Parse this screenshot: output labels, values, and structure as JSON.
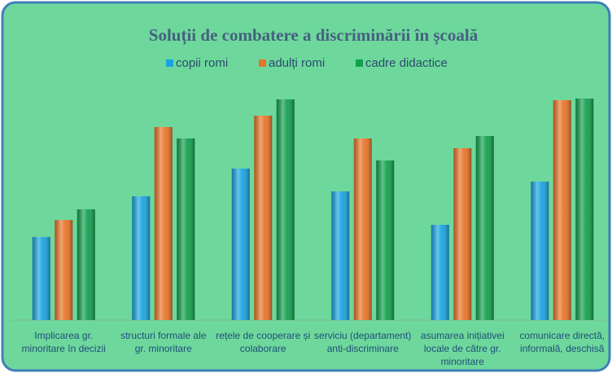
{
  "chart_data": {
    "type": "bar",
    "title": "Soluții de combatere a discriminării în școală",
    "categories": [
      "Implicarea gr. minoritare în decizii",
      "structuri formale ale gr. minoritare",
      "rețele de cooperare și colaborare",
      "serviciu (departament) anti-discriminare",
      "asumarea inițiativei locale de către gr. minoritare",
      "comunicare directă, informală, deschisă"
    ],
    "series": [
      {
        "name": "copii romi",
        "color": "#1aa3e0",
        "values": [
          102,
          152,
          186,
          158,
          117,
          170
        ]
      },
      {
        "name": "adulți romi",
        "color": "#e8742a",
        "values": [
          123,
          237,
          251,
          223,
          211,
          270
        ]
      },
      {
        "name": "cadre didactice",
        "color": "#12a04e",
        "values": [
          136,
          223,
          271,
          196,
          226,
          272
        ]
      }
    ],
    "ylim": [
      0,
      300
    ]
  }
}
